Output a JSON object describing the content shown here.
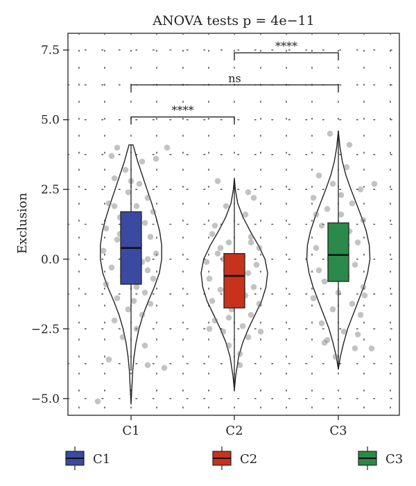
{
  "chart_data": {
    "type": "violin",
    "title": "ANOVA tests p = 4e−11",
    "xlabel": "",
    "ylabel": "Exclusion",
    "ylim": [
      -5.6,
      8.1
    ],
    "yticks": [
      7.5,
      5.0,
      2.5,
      0.0,
      -2.5,
      -5.0
    ],
    "ytick_labels": [
      "7.5",
      "5.0",
      "2.5",
      "0.0",
      "−2.5",
      "−5.0"
    ],
    "categories": [
      "C1",
      "C2",
      "C3"
    ],
    "grid": "dotted",
    "legend_position": "bottom",
    "groups": [
      {
        "name": "C1",
        "color": "#3a4aa0",
        "box": {
          "q1": -0.9,
          "median": 0.4,
          "q3": 1.7,
          "whisker_low": -4.0,
          "whisker_high": 4.1
        },
        "violin": {
          "y": [
            -5.2,
            -4.5,
            -4.0,
            -3.5,
            -3.0,
            -2.5,
            -2.0,
            -1.5,
            -1.0,
            -0.5,
            0.0,
            0.5,
            1.0,
            1.5,
            2.0,
            2.5,
            3.0,
            3.5,
            4.1
          ],
          "w": [
            0.0,
            0.03,
            0.05,
            0.09,
            0.15,
            0.24,
            0.36,
            0.52,
            0.7,
            0.85,
            0.92,
            0.92,
            0.86,
            0.75,
            0.62,
            0.48,
            0.34,
            0.2,
            0.06
          ]
        },
        "points": [
          [
            -0.7,
            3.7
          ],
          [
            0.4,
            3.5
          ],
          [
            -0.2,
            3.2
          ],
          [
            0.9,
            3.6
          ],
          [
            -0.6,
            2.9
          ],
          [
            0.3,
            2.7
          ],
          [
            -0.1,
            2.4
          ],
          [
            0.6,
            2.2
          ],
          [
            -0.8,
            2.0
          ],
          [
            0.2,
            1.9
          ],
          [
            0.8,
            1.7
          ],
          [
            -0.4,
            1.5
          ],
          [
            0.5,
            1.3
          ],
          [
            -0.9,
            1.1
          ],
          [
            0.1,
            1.0
          ],
          [
            0.7,
            0.8
          ],
          [
            -0.5,
            0.7
          ],
          [
            0.3,
            0.5
          ],
          [
            -1.0,
            0.3
          ],
          [
            0.9,
            0.2
          ],
          [
            -0.2,
            0.1
          ],
          [
            0.4,
            -0.1
          ],
          [
            -0.7,
            -0.3
          ],
          [
            0.6,
            -0.4
          ],
          [
            -0.3,
            -0.6
          ],
          [
            0.8,
            -0.7
          ],
          [
            -0.9,
            -0.9
          ],
          [
            0.2,
            -1.0
          ],
          [
            0.5,
            -1.2
          ],
          [
            -0.5,
            -1.4
          ],
          [
            0.7,
            -1.6
          ],
          [
            -0.1,
            -1.8
          ],
          [
            0.4,
            -2.0
          ],
          [
            -0.6,
            -2.2
          ],
          [
            0.2,
            -2.5
          ],
          [
            -0.3,
            -2.8
          ],
          [
            0.5,
            -3.1
          ],
          [
            -0.8,
            -3.6
          ],
          [
            0.6,
            -3.8
          ],
          [
            1.2,
            -3.9
          ],
          [
            0.0,
            2.8
          ],
          [
            -0.4,
            0.9
          ],
          [
            0.1,
            -1.5
          ],
          [
            -0.2,
            -0.2
          ],
          [
            0.3,
            1.5
          ],
          [
            -1.2,
            -5.1
          ],
          [
            1.3,
            4.0
          ],
          [
            -0.5,
            4.0
          ],
          [
            0.6,
            0.0
          ],
          [
            -0.6,
            1.9
          ]
        ]
      },
      {
        "name": "C2",
        "color": "#c8321c",
        "box": {
          "q1": -1.75,
          "median": -0.6,
          "q3": 0.2,
          "whisker_low": -4.5,
          "whisker_high": 2.8
        },
        "violin": {
          "y": [
            -4.7,
            -4.2,
            -3.5,
            -3.0,
            -2.5,
            -2.0,
            -1.5,
            -1.0,
            -0.5,
            0.0,
            0.5,
            1.0,
            1.5,
            2.0,
            2.5,
            2.9
          ],
          "w": [
            0.0,
            0.04,
            0.13,
            0.25,
            0.42,
            0.62,
            0.82,
            0.95,
            1.0,
            0.92,
            0.72,
            0.48,
            0.26,
            0.1,
            0.03,
            0.0
          ]
        },
        "points": [
          [
            -0.8,
            0.9
          ],
          [
            0.6,
            0.8
          ],
          [
            -0.2,
            0.6
          ],
          [
            0.9,
            0.4
          ],
          [
            -0.6,
            0.2
          ],
          [
            0.3,
            0.1
          ],
          [
            -1.0,
            -0.1
          ],
          [
            0.8,
            -0.2
          ],
          [
            -0.3,
            -0.4
          ],
          [
            0.5,
            -0.5
          ],
          [
            -0.9,
            -0.7
          ],
          [
            0.1,
            -0.8
          ],
          [
            0.7,
            -1.0
          ],
          [
            -0.5,
            -1.1
          ],
          [
            0.4,
            -1.3
          ],
          [
            -0.8,
            -1.5
          ],
          [
            0.9,
            -1.6
          ],
          [
            -0.1,
            -1.8
          ],
          [
            0.6,
            -2.0
          ],
          [
            -0.7,
            -2.2
          ],
          [
            0.3,
            -2.4
          ],
          [
            -0.4,
            -2.6
          ],
          [
            0.5,
            -2.8
          ],
          [
            -0.2,
            -3.1
          ],
          [
            0.2,
            -3.4
          ],
          [
            -0.6,
            2.8
          ],
          [
            0.4,
            1.6
          ],
          [
            -0.3,
            1.9
          ],
          [
            0.7,
            2.2
          ],
          [
            -0.9,
            -2.5
          ],
          [
            0.95,
            -2.6
          ],
          [
            0.0,
            -0.3
          ],
          [
            -0.5,
            0.4
          ],
          [
            0.3,
            -1.1
          ],
          [
            0.6,
            0.6
          ],
          [
            -0.2,
            -2.1
          ],
          [
            0.5,
            2.4
          ],
          [
            -0.7,
            1.2
          ],
          [
            0.2,
            -3.8
          ],
          [
            -0.4,
            0.0
          ]
        ]
      },
      {
        "name": "C3",
        "color": "#2a8a4a",
        "box": {
          "q1": -0.8,
          "median": 0.15,
          "q3": 1.3,
          "whisker_low": -3.9,
          "whisker_high": 4.6
        },
        "violin": {
          "y": [
            -3.95,
            -3.5,
            -3.0,
            -2.5,
            -2.0,
            -1.5,
            -1.0,
            -0.5,
            0.0,
            0.5,
            1.0,
            1.5,
            2.0,
            2.5,
            3.0,
            3.5,
            4.0,
            4.6
          ],
          "w": [
            0.0,
            0.06,
            0.16,
            0.28,
            0.44,
            0.6,
            0.76,
            0.88,
            0.95,
            0.93,
            0.84,
            0.7,
            0.54,
            0.38,
            0.23,
            0.12,
            0.05,
            0.0
          ]
        },
        "points": [
          [
            -0.7,
            3.0
          ],
          [
            0.3,
            3.3
          ],
          [
            -0.2,
            2.7
          ],
          [
            0.8,
            2.5
          ],
          [
            -0.9,
            2.2
          ],
          [
            0.5,
            2.0
          ],
          [
            -0.4,
            1.8
          ],
          [
            0.1,
            1.6
          ],
          [
            0.9,
            1.4
          ],
          [
            -0.6,
            1.2
          ],
          [
            0.4,
            1.0
          ],
          [
            -0.1,
            0.8
          ],
          [
            0.7,
            0.6
          ],
          [
            -0.8,
            0.4
          ],
          [
            0.2,
            0.2
          ],
          [
            -0.3,
            0.0
          ],
          [
            0.6,
            -0.2
          ],
          [
            -0.7,
            -0.4
          ],
          [
            0.3,
            -0.6
          ],
          [
            -0.5,
            -0.8
          ],
          [
            0.9,
            -1.0
          ],
          [
            0.0,
            -1.2
          ],
          [
            -0.9,
            -1.4
          ],
          [
            0.5,
            -1.6
          ],
          [
            -0.2,
            -1.8
          ],
          [
            0.8,
            -2.0
          ],
          [
            -0.6,
            -2.3
          ],
          [
            0.2,
            -2.6
          ],
          [
            -0.4,
            -2.9
          ],
          [
            0.6,
            -3.2
          ],
          [
            -0.1,
            -3.5
          ],
          [
            1.2,
            -3.2
          ],
          [
            1.3,
            2.7
          ],
          [
            -0.3,
            4.5
          ],
          [
            0.4,
            4.1
          ],
          [
            -0.8,
            1.6
          ],
          [
            0.7,
            -2.7
          ],
          [
            0.1,
            2.3
          ],
          [
            -0.5,
            -3.0
          ],
          [
            0.3,
            0.5
          ],
          [
            0.95,
            -1.3
          ],
          [
            -0.2,
            0.3
          ]
        ]
      }
    ],
    "comparisons": [
      {
        "from": "C2",
        "to": "C3",
        "y": 7.4,
        "label": "****"
      },
      {
        "from": "C1",
        "to": "C3",
        "y": 6.25,
        "label": "ns"
      },
      {
        "from": "C1",
        "to": "C2",
        "y": 5.1,
        "label": "****"
      }
    ]
  }
}
